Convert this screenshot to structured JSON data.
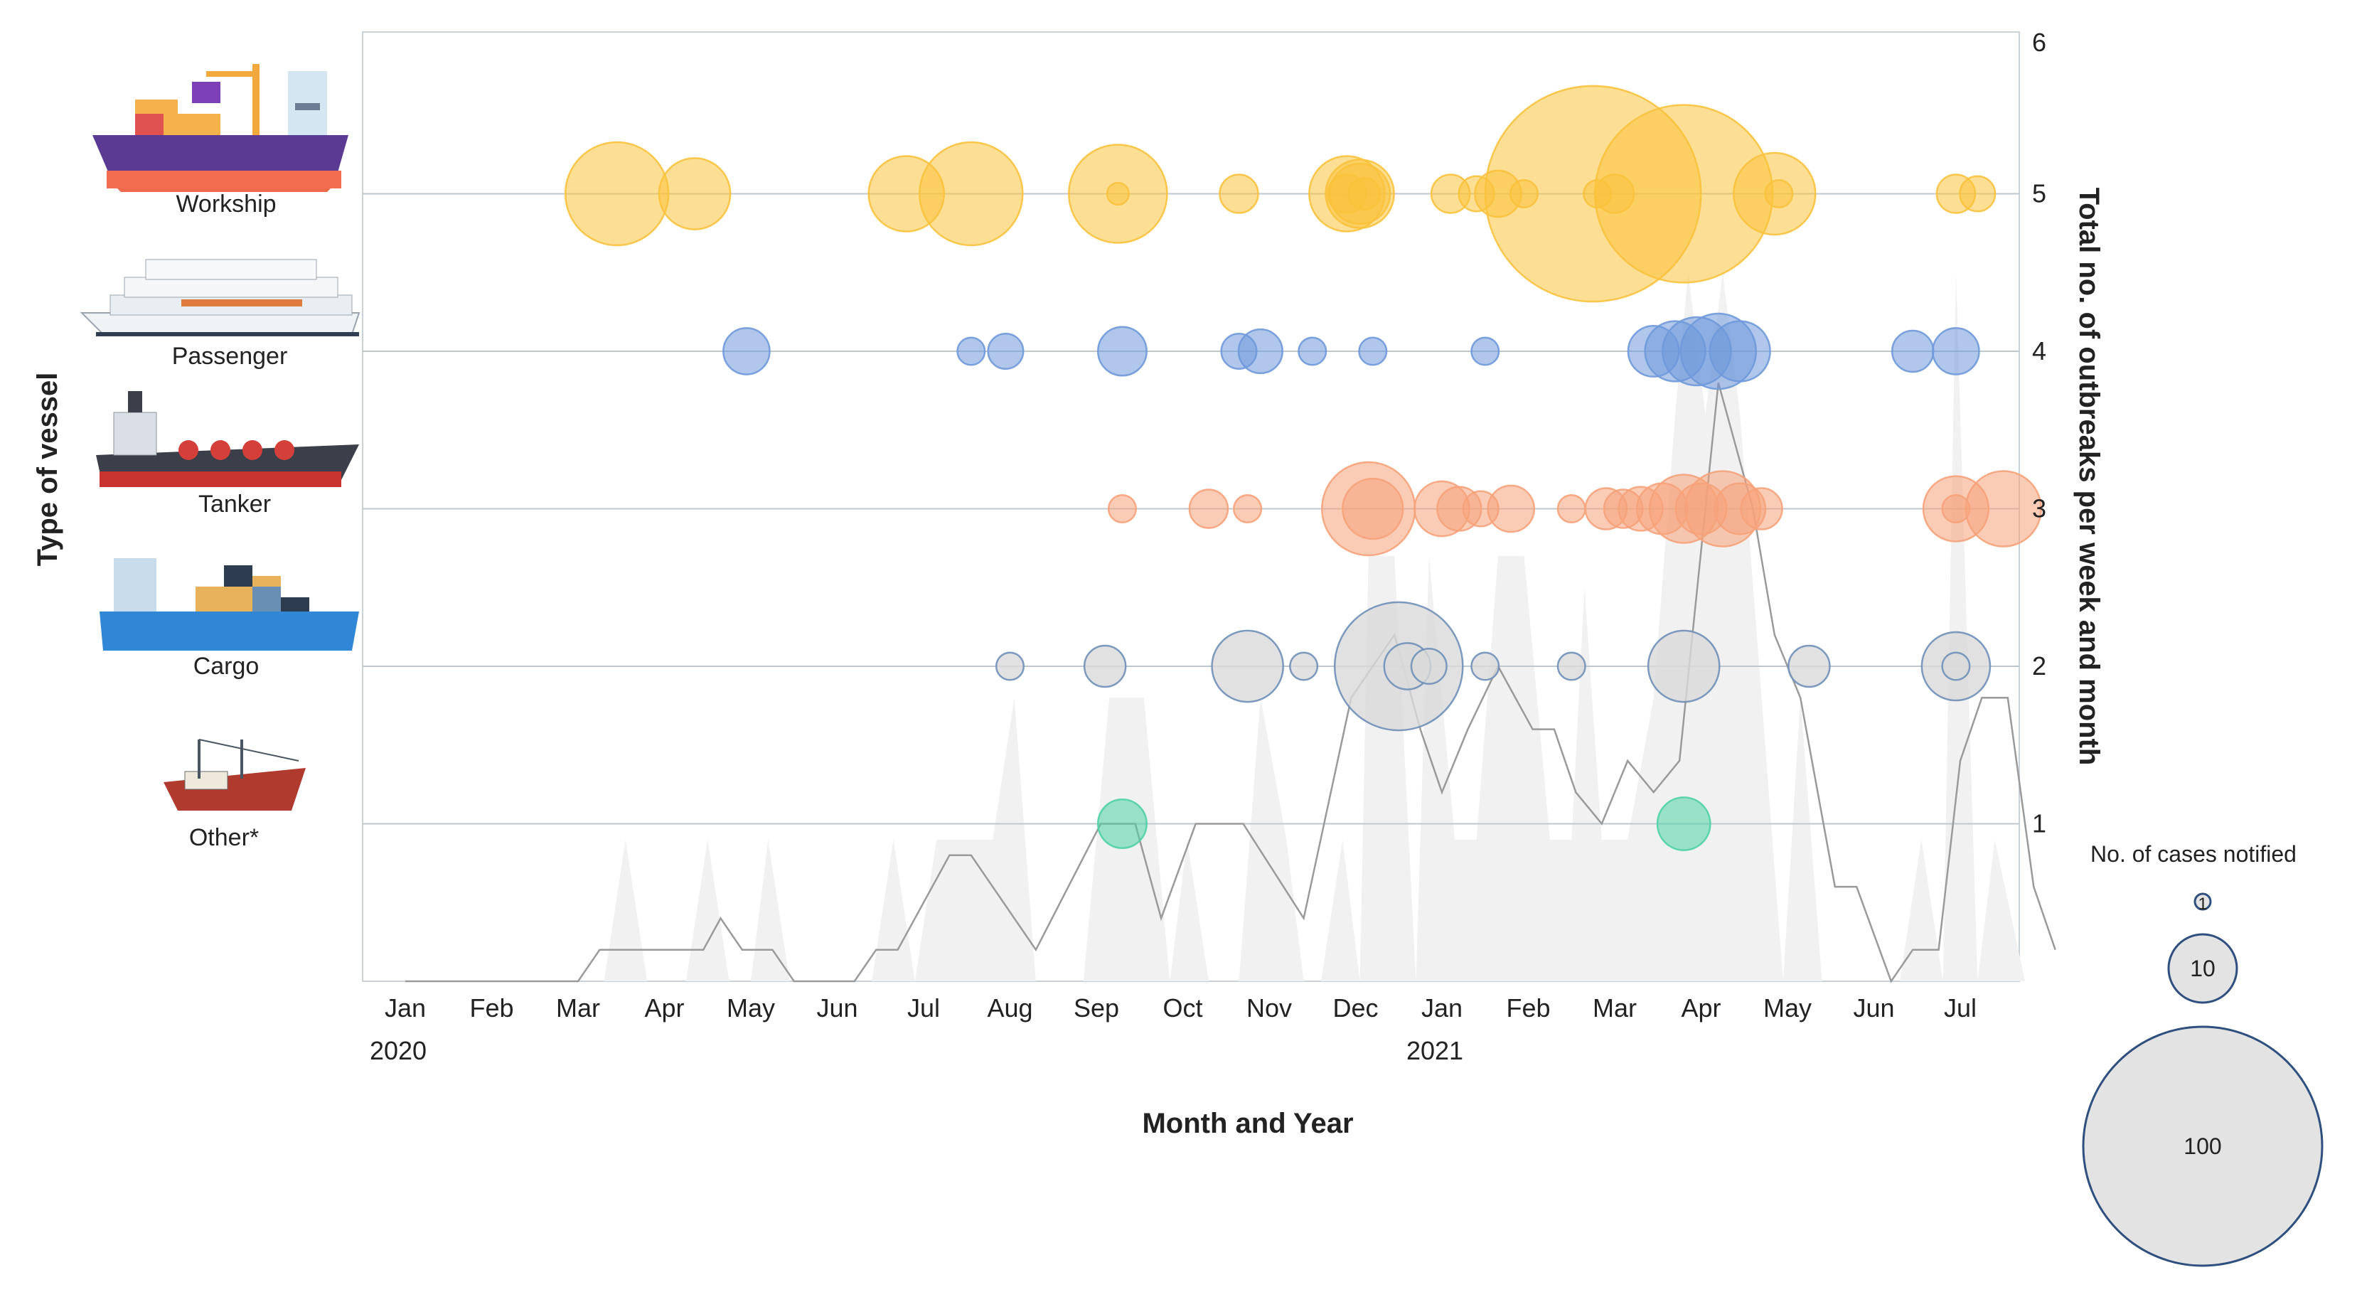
{
  "chart_data": {
    "type": "bubble-timeline",
    "title": "",
    "xlabel": "Month and Year",
    "ylabel_left": "Type of vessel",
    "ylabel_right": "Total no. of outbreaks per week and month",
    "y_right_ticks": [
      1,
      2,
      3,
      4,
      5,
      6
    ],
    "y_right_range": [
      0,
      6
    ],
    "months": [
      "Jan",
      "Feb",
      "Mar",
      "Apr",
      "May",
      "Jun",
      "Jul",
      "Aug",
      "Sep",
      "Oct",
      "Nov",
      "Dec",
      "Jan",
      "Feb",
      "Mar",
      "Apr",
      "May",
      "Jun",
      "Jul"
    ],
    "years": [
      {
        "label": "2020",
        "month_index": 0
      },
      {
        "label": "2021",
        "month_index": 12
      }
    ],
    "vessel_types": [
      {
        "name": "Workship",
        "icon": "workship-icon",
        "color": "#F9C23C",
        "level": 5,
        "outbreaks": [
          {
            "m": 2.45,
            "cases": 50
          },
          {
            "m": 3.35,
            "cases": 22
          },
          {
            "m": 5.8,
            "cases": 25
          },
          {
            "m": 6.55,
            "cases": 50
          },
          {
            "m": 8.25,
            "cases": 1
          },
          {
            "m": 8.25,
            "cases": 45
          },
          {
            "m": 9.65,
            "cases": 5
          },
          {
            "m": 10.9,
            "cases": 25
          },
          {
            "m": 10.9,
            "cases": 5
          },
          {
            "m": 11.05,
            "cases": 20
          },
          {
            "m": 11.05,
            "cases": 15
          },
          {
            "m": 11.1,
            "cases": 3
          },
          {
            "m": 12.1,
            "cases": 5
          },
          {
            "m": 12.4,
            "cases": 4
          },
          {
            "m": 12.65,
            "cases": 8
          },
          {
            "m": 12.95,
            "cases": 2
          },
          {
            "m": 13.75,
            "cases": 240
          },
          {
            "m": 13.8,
            "cases": 2
          },
          {
            "m": 14.0,
            "cases": 5
          },
          {
            "m": 14.8,
            "cases": 160
          },
          {
            "m": 15.85,
            "cases": 30
          },
          {
            "m": 15.9,
            "cases": 2
          },
          {
            "m": 17.95,
            "cases": 5
          },
          {
            "m": 18.2,
            "cases": 4
          }
        ]
      },
      {
        "name": "Passenger",
        "icon": "passenger-icon",
        "color": "#6F99DA",
        "level": 4,
        "outbreaks": [
          {
            "m": 3.95,
            "cases": 8
          },
          {
            "m": 6.55,
            "cases": 2
          },
          {
            "m": 6.95,
            "cases": 4
          },
          {
            "m": 8.3,
            "cases": 9
          },
          {
            "m": 9.65,
            "cases": 4
          },
          {
            "m": 9.9,
            "cases": 7
          },
          {
            "m": 10.5,
            "cases": 2
          },
          {
            "m": 11.2,
            "cases": 2
          },
          {
            "m": 12.5,
            "cases": 2
          },
          {
            "m": 14.45,
            "cases": 10
          },
          {
            "m": 14.7,
            "cases": 15
          },
          {
            "m": 14.95,
            "cases": 20
          },
          {
            "m": 15.2,
            "cases": 25
          },
          {
            "m": 15.45,
            "cases": 15
          },
          {
            "m": 17.45,
            "cases": 6
          },
          {
            "m": 17.95,
            "cases": 8
          }
        ]
      },
      {
        "name": "Tanker",
        "icon": "tanker-icon",
        "color": "#F6A27A",
        "level": 3,
        "outbreaks": [
          {
            "m": 8.3,
            "cases": 2
          },
          {
            "m": 9.3,
            "cases": 5
          },
          {
            "m": 9.75,
            "cases": 2
          },
          {
            "m": 11.15,
            "cases": 40
          },
          {
            "m": 11.2,
            "cases": 15
          },
          {
            "m": 12.0,
            "cases": 12
          },
          {
            "m": 12.2,
            "cases": 7
          },
          {
            "m": 12.45,
            "cases": 4
          },
          {
            "m": 12.8,
            "cases": 8
          },
          {
            "m": 13.5,
            "cases": 2
          },
          {
            "m": 13.9,
            "cases": 6
          },
          {
            "m": 14.1,
            "cases": 5
          },
          {
            "m": 14.3,
            "cases": 7
          },
          {
            "m": 14.55,
            "cases": 10
          },
          {
            "m": 14.8,
            "cases": 20
          },
          {
            "m": 15.0,
            "cases": 10
          },
          {
            "m": 15.25,
            "cases": 25
          },
          {
            "m": 15.45,
            "cases": 10
          },
          {
            "m": 15.7,
            "cases": 6
          },
          {
            "m": 17.95,
            "cases": 18
          },
          {
            "m": 17.95,
            "cases": 2
          },
          {
            "m": 18.5,
            "cases": 25
          }
        ]
      },
      {
        "name": "Cargo",
        "icon": "cargo-icon",
        "color": "#D9D9D9",
        "level": 2,
        "outbreaks": [
          {
            "m": 7.0,
            "cases": 2
          },
          {
            "m": 8.1,
            "cases": 6
          },
          {
            "m": 9.75,
            "cases": 22
          },
          {
            "m": 10.4,
            "cases": 2
          },
          {
            "m": 11.5,
            "cases": 80
          },
          {
            "m": 11.6,
            "cases": 8
          },
          {
            "m": 11.85,
            "cases": 4
          },
          {
            "m": 12.5,
            "cases": 2
          },
          {
            "m": 13.5,
            "cases": 2
          },
          {
            "m": 14.8,
            "cases": 22
          },
          {
            "m": 16.25,
            "cases": 6
          },
          {
            "m": 17.95,
            "cases": 20
          },
          {
            "m": 17.95,
            "cases": 2
          }
        ]
      },
      {
        "name": "Other*",
        "icon": "fishing-boat-icon",
        "color": "#4FD1A5",
        "level": 1,
        "outbreaks": [
          {
            "m": 8.3,
            "cases": 9
          },
          {
            "m": 14.8,
            "cases": 11
          }
        ]
      }
    ],
    "background_area_weekly": [
      {
        "m": 0.0,
        "v": 0
      },
      {
        "m": 2.3,
        "v": 0
      },
      {
        "m": 2.55,
        "v": 0.9
      },
      {
        "m": 2.8,
        "v": 0
      },
      {
        "m": 3.25,
        "v": 0
      },
      {
        "m": 3.5,
        "v": 0.9
      },
      {
        "m": 3.75,
        "v": 0
      },
      {
        "m": 4.0,
        "v": 0
      },
      {
        "m": 4.2,
        "v": 0.9
      },
      {
        "m": 4.45,
        "v": 0
      },
      {
        "m": 5.4,
        "v": 0
      },
      {
        "m": 5.65,
        "v": 0.9
      },
      {
        "m": 5.9,
        "v": 0
      },
      {
        "m": 6.15,
        "v": 0.9
      },
      {
        "m": 6.8,
        "v": 0.9
      },
      {
        "m": 7.05,
        "v": 1.8
      },
      {
        "m": 7.3,
        "v": 0
      },
      {
        "m": 7.85,
        "v": 0
      },
      {
        "m": 8.15,
        "v": 1.8
      },
      {
        "m": 8.55,
        "v": 1.8
      },
      {
        "m": 8.85,
        "v": 0
      },
      {
        "m": 9.05,
        "v": 0.9
      },
      {
        "m": 9.3,
        "v": 0
      },
      {
        "m": 9.65,
        "v": 0
      },
      {
        "m": 9.9,
        "v": 1.8
      },
      {
        "m": 10.2,
        "v": 0.9
      },
      {
        "m": 10.4,
        "v": 0
      },
      {
        "m": 10.6,
        "v": 0
      },
      {
        "m": 10.85,
        "v": 0.9
      },
      {
        "m": 11.05,
        "v": 0
      },
      {
        "m": 11.15,
        "v": 2.7
      },
      {
        "m": 11.45,
        "v": 2.7
      },
      {
        "m": 11.7,
        "v": 0
      },
      {
        "m": 11.85,
        "v": 2.7
      },
      {
        "m": 12.15,
        "v": 0.9
      },
      {
        "m": 12.4,
        "v": 0.9
      },
      {
        "m": 12.65,
        "v": 2.7
      },
      {
        "m": 12.95,
        "v": 2.7
      },
      {
        "m": 13.25,
        "v": 0.9
      },
      {
        "m": 13.5,
        "v": 0.9
      },
      {
        "m": 13.65,
        "v": 2.5
      },
      {
        "m": 13.85,
        "v": 0.9
      },
      {
        "m": 14.15,
        "v": 0.9
      },
      {
        "m": 14.45,
        "v": 1.8
      },
      {
        "m": 14.7,
        "v": 3.6
      },
      {
        "m": 14.85,
        "v": 4.5
      },
      {
        "m": 15.05,
        "v": 3.6
      },
      {
        "m": 15.25,
        "v": 4.5
      },
      {
        "m": 15.45,
        "v": 3.6
      },
      {
        "m": 15.7,
        "v": 1.8
      },
      {
        "m": 15.95,
        "v": 0
      },
      {
        "m": 16.15,
        "v": 1.8
      },
      {
        "m": 16.4,
        "v": 0
      },
      {
        "m": 17.3,
        "v": 0
      },
      {
        "m": 17.55,
        "v": 0.9
      },
      {
        "m": 17.8,
        "v": 0
      },
      {
        "m": 17.95,
        "v": 4.5
      },
      {
        "m": 18.2,
        "v": 0
      },
      {
        "m": 18.4,
        "v": 0.9
      },
      {
        "m": 18.75,
        "v": 0
      }
    ],
    "line_monthly": [
      {
        "m": 0.0,
        "v": 0
      },
      {
        "m": 2.0,
        "v": 0
      },
      {
        "m": 2.25,
        "v": 0.2
      },
      {
        "m": 3.45,
        "v": 0.2
      },
      {
        "m": 3.65,
        "v": 0.4
      },
      {
        "m": 3.9,
        "v": 0.2
      },
      {
        "m": 4.25,
        "v": 0.2
      },
      {
        "m": 4.5,
        "v": 0
      },
      {
        "m": 5.2,
        "v": 0
      },
      {
        "m": 5.45,
        "v": 0.2
      },
      {
        "m": 5.7,
        "v": 0.2
      },
      {
        "m": 6.3,
        "v": 0.8
      },
      {
        "m": 6.55,
        "v": 0.8
      },
      {
        "m": 7.3,
        "v": 0.2
      },
      {
        "m": 8.05,
        "v": 1.0
      },
      {
        "m": 8.45,
        "v": 1.0
      },
      {
        "m": 8.75,
        "v": 0.4
      },
      {
        "m": 9.15,
        "v": 1.0
      },
      {
        "m": 9.7,
        "v": 1.0
      },
      {
        "m": 10.4,
        "v": 0.4
      },
      {
        "m": 10.95,
        "v": 1.8
      },
      {
        "m": 11.45,
        "v": 2.2
      },
      {
        "m": 11.75,
        "v": 1.6
      },
      {
        "m": 12.0,
        "v": 1.2
      },
      {
        "m": 12.3,
        "v": 1.6
      },
      {
        "m": 12.65,
        "v": 2.0
      },
      {
        "m": 13.05,
        "v": 1.6
      },
      {
        "m": 13.3,
        "v": 1.6
      },
      {
        "m": 13.55,
        "v": 1.2
      },
      {
        "m": 13.85,
        "v": 1.0
      },
      {
        "m": 14.15,
        "v": 1.4
      },
      {
        "m": 14.45,
        "v": 1.2
      },
      {
        "m": 14.75,
        "v": 1.4
      },
      {
        "m": 15.2,
        "v": 3.8
      },
      {
        "m": 15.6,
        "v": 3.0
      },
      {
        "m": 15.85,
        "v": 2.2
      },
      {
        "m": 16.15,
        "v": 1.8
      },
      {
        "m": 16.55,
        "v": 0.6
      },
      {
        "m": 16.8,
        "v": 0.6
      },
      {
        "m": 17.2,
        "v": 0
      },
      {
        "m": 17.45,
        "v": 0.2
      },
      {
        "m": 17.75,
        "v": 0.2
      },
      {
        "m": 18.0,
        "v": 1.4
      },
      {
        "m": 18.25,
        "v": 1.8
      },
      {
        "m": 18.55,
        "v": 1.8
      },
      {
        "m": 18.85,
        "v": 0.6
      },
      {
        "m": 19.1,
        "v": 0.2
      }
    ],
    "size_legend": {
      "title": "No. of cases notified",
      "entries": [
        {
          "label": "1",
          "cases": 1
        },
        {
          "label": "10",
          "cases": 10
        },
        {
          "label": "100",
          "cases": 100
        }
      ]
    }
  }
}
